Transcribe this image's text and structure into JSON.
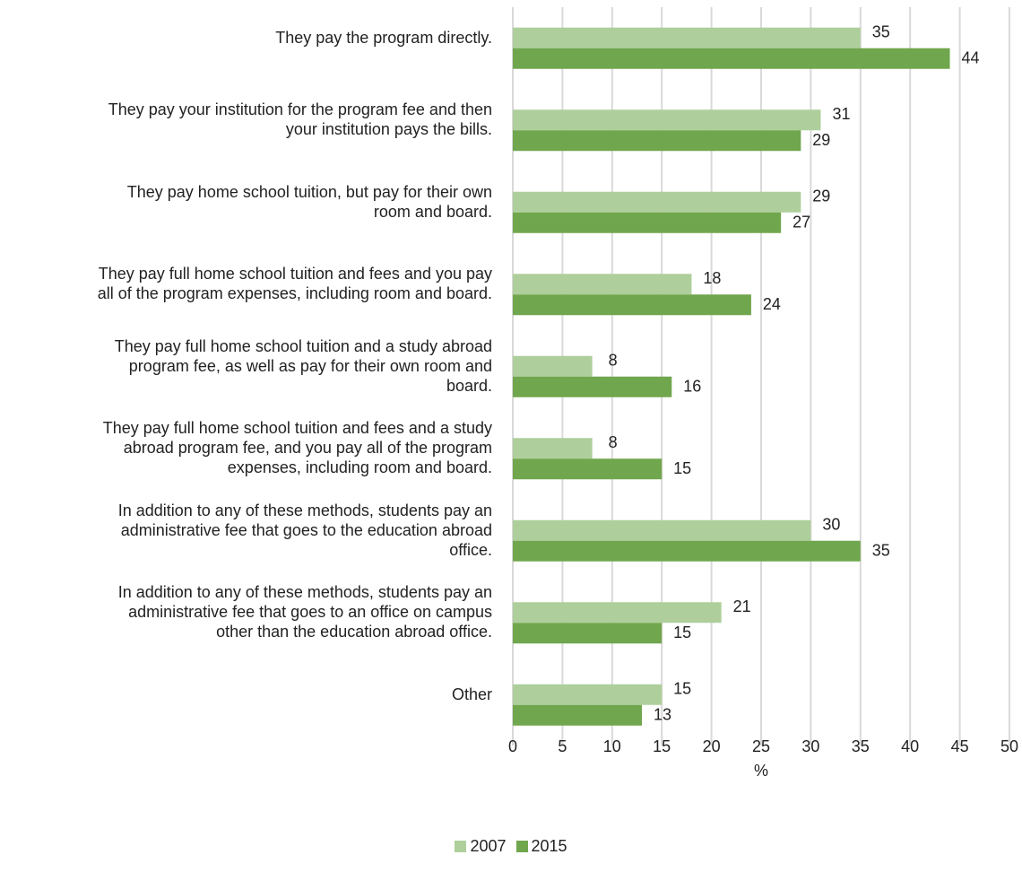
{
  "chart_data": {
    "type": "bar",
    "orientation": "horizontal",
    "categories": [
      "They pay the program directly.",
      "They pay your institution for the program fee and then your institution pays the bills.",
      "They pay home school tuition, but pay for their own room and board.",
      "They pay full home school tuition and fees and you pay all of the program expenses, including room and board.",
      "They pay full home school tuition and a study abroad program fee, as well as pay for their own room and board.",
      "They pay full home school tuition and fees and a study abroad program fee, and you pay all of the program expenses, including room and board.",
      "In addition to any of these methods, students pay an administrative fee that goes to the education abroad office.",
      "In addition to any of these methods, students pay an administrative fee that goes to an office on campus other than the education abroad office.",
      "Other"
    ],
    "category_lines": [
      [
        "They pay the program directly."
      ],
      [
        "They pay your institution for the program fee and then",
        "your institution pays the bills."
      ],
      [
        "They pay home school tuition, but pay for their own",
        "room and board."
      ],
      [
        "They pay full home school tuition and fees and you pay",
        "all of the program expenses, including room and board."
      ],
      [
        "They pay full home school tuition and a study abroad",
        "program fee, as well as pay for their own room and",
        "board."
      ],
      [
        "They pay full home school tuition and fees and a study",
        "abroad program fee, and you pay all of the program",
        "expenses, including room and board."
      ],
      [
        "In addition to any of these methods, students pay an",
        "administrative fee that goes to the education abroad",
        "office."
      ],
      [
        "In addition to any of these methods, students pay an",
        "administrative fee that goes to an office on campus",
        "other than the education abroad office."
      ],
      [
        "Other"
      ]
    ],
    "series": [
      {
        "name": "2007",
        "color": "#aecf9b",
        "values": [
          35,
          31,
          29,
          18,
          8,
          8,
          30,
          21,
          15
        ]
      },
      {
        "name": "2015",
        "color": "#70a64d",
        "values": [
          44,
          29,
          27,
          24,
          16,
          15,
          35,
          15,
          13
        ]
      }
    ],
    "xlabel": "%",
    "xlim": [
      0,
      50
    ],
    "xticks": [
      0,
      5,
      10,
      15,
      20,
      25,
      30,
      35,
      40,
      45,
      50
    ],
    "grid": true,
    "legend_position": "bottom"
  }
}
